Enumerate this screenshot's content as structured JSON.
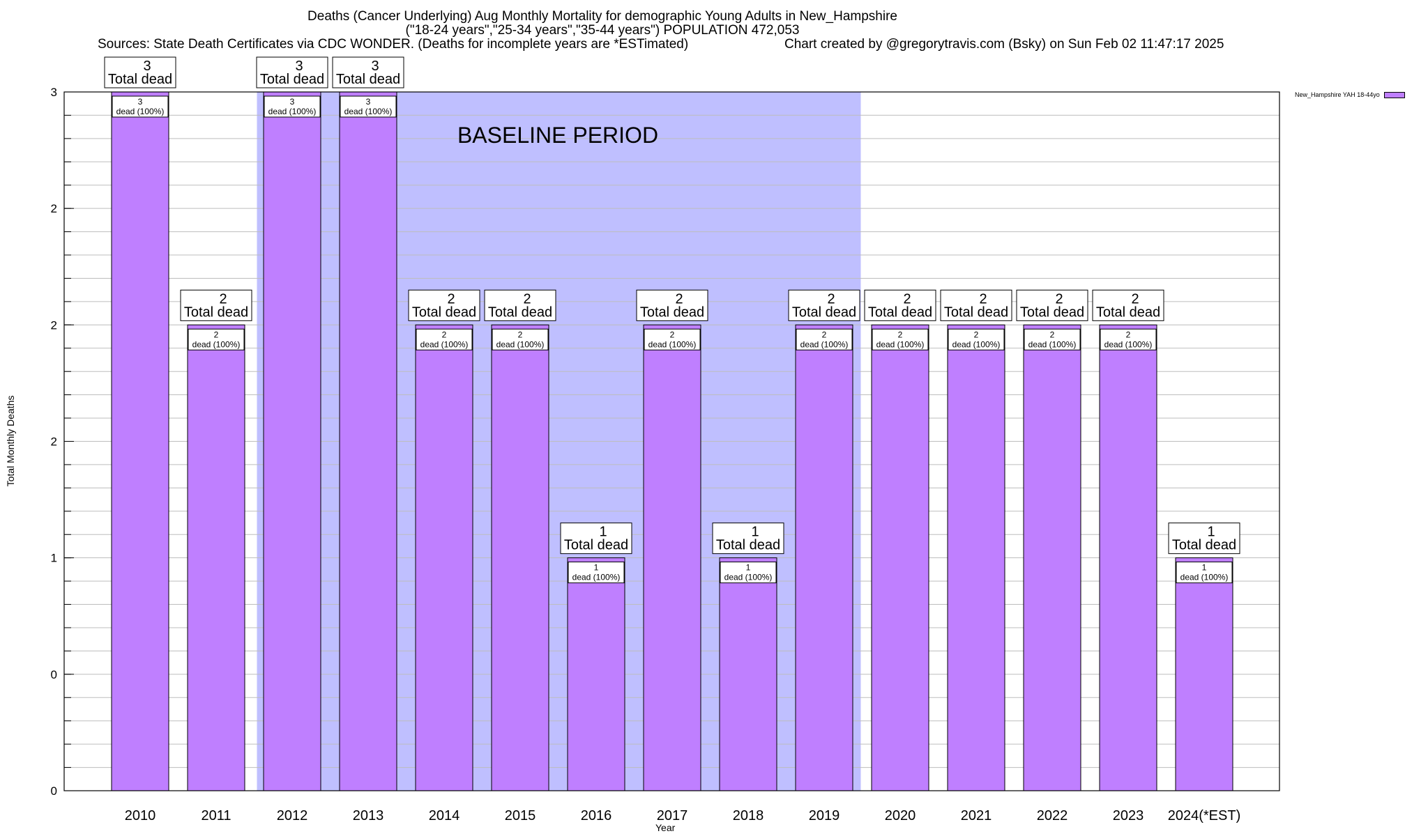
{
  "chart_data": {
    "type": "bar",
    "title_lines": [
      "Deaths (Cancer Underlying) Aug Monthly Mortality for demographic Young Adults in New_Hampshire",
      "(\"18-24 years\",\"25-34 years\",\"35-44 years\") POPULATION 472,053",
      "Sources: State Death Certificates via CDC WONDER. (Deaths for incomplete years are *ESTimated)",
      "Chart created by @gregorytravis.com (Bsky) on Sun Feb 02 11:47:17 2025"
    ],
    "xlabel": "Year",
    "ylabel": "Total Monthly Deaths",
    "categories": [
      "2010",
      "2011",
      "2012",
      "2013",
      "2014",
      "2015",
      "2016",
      "2017",
      "2018",
      "2019",
      "2020",
      "2021",
      "2022",
      "2023",
      "2024(*EST)"
    ],
    "series": [
      {
        "name": "New_Hampshire YAH 18-44yo",
        "values": [
          3,
          2,
          3,
          3,
          2,
          2,
          1,
          2,
          1,
          2,
          2,
          2,
          2,
          2,
          1
        ],
        "color": "#bf7fff"
      }
    ],
    "ylim": [
      0,
      3
    ],
    "ytick_labels": [
      "0",
      "0",
      "1",
      "2",
      "2",
      "2",
      "3"
    ],
    "total_label_suffix": "Total dead",
    "inner_label_suffix": "dead (100%)",
    "baseline": {
      "label": "BASELINE PERIOD",
      "from": "2012",
      "to": "2019",
      "color": "#bfbfff"
    },
    "grid": true,
    "legend_position": "top-right"
  }
}
